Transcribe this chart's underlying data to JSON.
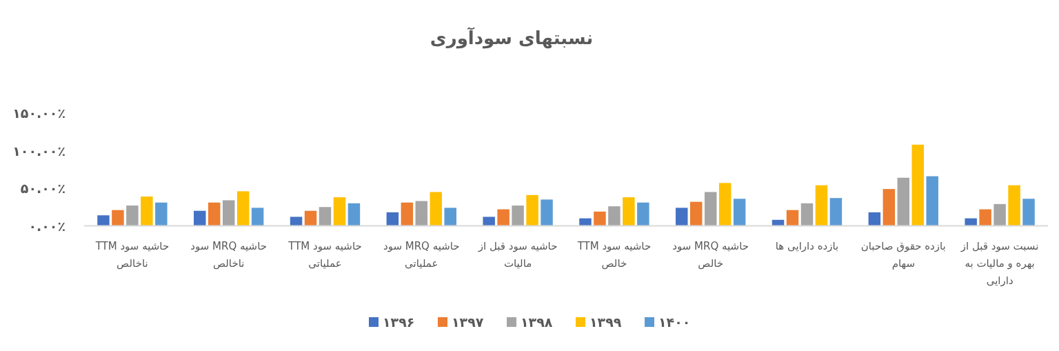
{
  "chart_data": {
    "type": "bar",
    "title": "نسبتهای سودآوری",
    "categories": [
      "حاشیه سود TTM ناخالص",
      "حاشیه MRQ سود ناخالص",
      "حاشیه سود TTM عملیاتی",
      "حاشیه MRQ سود عملیاتی",
      "حاشیه سود قبل از مالیات",
      "حاشیه سود TTM خالص",
      "حاشیه MRQ سود خالص",
      "بازده دارایی ها",
      "بازده حقوق صاحبان سهام",
      "نسبت سود قبل از بهره و مالیات به دارایی"
    ],
    "series": [
      {
        "name": "۱۳۹۶",
        "color": "#4472c4",
        "values": [
          14,
          20,
          12,
          18,
          12,
          10,
          24,
          8,
          18,
          10
        ]
      },
      {
        "name": "۱۳۹۷",
        "color": "#ed7d31",
        "values": [
          21,
          31,
          20,
          31,
          22,
          19,
          32,
          21,
          49,
          22
        ]
      },
      {
        "name": "۱۳۹۸",
        "color": "#a5a5a5",
        "values": [
          27,
          34,
          25,
          33,
          27,
          26,
          45,
          30,
          64,
          29
        ]
      },
      {
        "name": "۱۳۹۹",
        "color": "#ffc000",
        "values": [
          39,
          46,
          38,
          45,
          41,
          38,
          57,
          54,
          108,
          54
        ]
      },
      {
        "name": "۱۴۰۰",
        "color": "#5b9bd5",
        "values": [
          31,
          24,
          30,
          24,
          35,
          31,
          36,
          37,
          66,
          36
        ]
      }
    ],
    "ylim": [
      0,
      150
    ],
    "yticks": [
      {
        "value": 0,
        "label": "۰.۰۰٪"
      },
      {
        "value": 50,
        "label": "۵۰.۰۰٪"
      },
      {
        "value": 100,
        "label": "۱۰۰.۰۰٪"
      },
      {
        "value": 150,
        "label": "۱۵۰.۰۰٪"
      }
    ],
    "grid": false,
    "legend": "bottom"
  }
}
